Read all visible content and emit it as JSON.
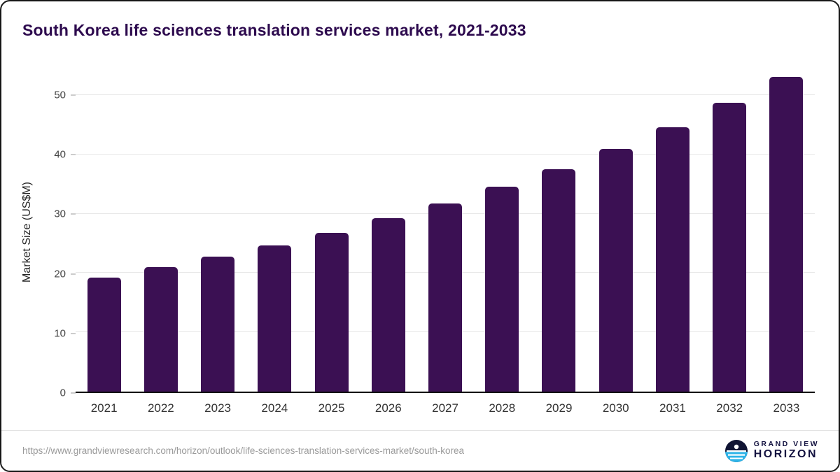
{
  "title": "South Korea life sciences translation services market, 2021-2033",
  "chart_data": {
    "type": "bar",
    "categories": [
      "2021",
      "2022",
      "2023",
      "2024",
      "2025",
      "2026",
      "2027",
      "2028",
      "2029",
      "2030",
      "2031",
      "2032",
      "2033"
    ],
    "values": [
      19.2,
      21.0,
      22.7,
      24.7,
      26.8,
      29.2,
      31.7,
      34.5,
      37.5,
      40.9,
      44.6,
      48.7,
      53.1
    ],
    "title": "South Korea life sciences translation services market, 2021-2033",
    "xlabel": "",
    "ylabel": "Market Size (US$M)",
    "ylim": [
      0,
      54
    ],
    "yticks": [
      0,
      10,
      20,
      30,
      40,
      50
    ],
    "grid": true,
    "legend": false,
    "bar_color": "#3b1053"
  },
  "colors": {
    "title_text": "#2d0a4e",
    "bar": "#3b1053",
    "brand_navy": "#131240",
    "logo_blue": "#2fb4e8"
  },
  "footer": {
    "source_url": "https://www.grandviewresearch.com/horizon/outlook/life-sciences-translation-services-market/south-korea",
    "brand_line1": "GRAND VIEW",
    "brand_line2": "HORIZON"
  }
}
